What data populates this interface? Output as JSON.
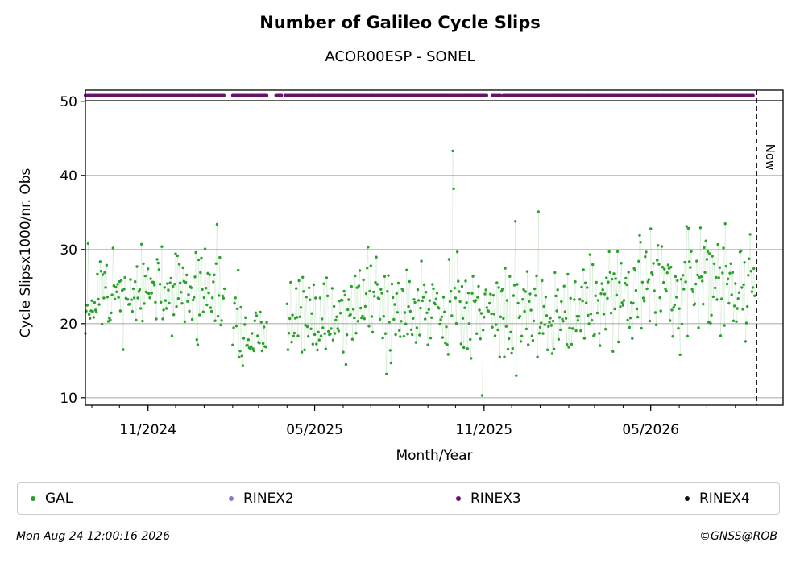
{
  "chart_data": {
    "type": "scatter",
    "title": "Number of Galileo Cycle Slips",
    "subtitle": "ACOR00ESP - SONEL",
    "xlabel": "Month/Year",
    "ylabel": "Cycle Slipsx1000/nr. Obs",
    "x_start": "2024-08-25",
    "x_end": "2026-08-24",
    "now": "2026-08-24",
    "now_label": "Now",
    "ylim": [
      9,
      51.5
    ],
    "yticks": [
      10,
      20,
      30,
      40,
      50
    ],
    "xticks": [
      {
        "date": "2024-11-01",
        "label": "11/2024"
      },
      {
        "date": "2025-05-01",
        "label": "05/2025"
      },
      {
        "date": "2025-11-01",
        "label": "11/2025"
      },
      {
        "date": "2026-05-01",
        "label": "05/2026"
      }
    ],
    "grid": "horizontal",
    "legend_location": "bottom",
    "series": [
      {
        "name": "GAL",
        "color": "#2ca02c",
        "segments": [
          {
            "start": "2024-08-25",
            "end": "2025-01-23",
            "min": 16.5,
            "max": 30.8
          },
          {
            "start": "2025-02-01",
            "end": "2025-03-10",
            "min": 14.2,
            "max": 27.0
          },
          {
            "start": "2025-04-01",
            "end": "2025-10-29",
            "min": 13.2,
            "max": 30.5
          },
          {
            "start": "2025-10-30",
            "end": "2026-08-22",
            "min": 15.5,
            "max": 33.5
          }
        ],
        "highlights": [
          {
            "date": "2024-08-28",
            "value": 30.8
          },
          {
            "date": "2025-01-15",
            "value": 33.4
          },
          {
            "date": "2025-02-07",
            "value": 27.2
          },
          {
            "date": "2025-02-12",
            "value": 14.3
          },
          {
            "date": "2025-07-18",
            "value": 13.2
          },
          {
            "date": "2025-09-28",
            "value": 43.3
          },
          {
            "date": "2025-09-29",
            "value": 38.2
          },
          {
            "date": "2025-10-30",
            "value": 10.3
          },
          {
            "date": "2025-12-05",
            "value": 33.8
          },
          {
            "date": "2025-12-06",
            "value": 13.0
          },
          {
            "date": "2025-12-30",
            "value": 35.1
          },
          {
            "date": "2026-05-01",
            "value": 32.8
          },
          {
            "date": "2026-06-02",
            "value": 15.8
          },
          {
            "date": "2026-08-12",
            "value": 17.6
          }
        ]
      },
      {
        "name": "RINEX2",
        "color": "#8080c0",
        "segments": []
      },
      {
        "name": "RINEX3",
        "color": "#6a0f6a",
        "value": 50.8,
        "segments": [
          {
            "start": "2024-08-25",
            "end": "2025-01-23"
          },
          {
            "start": "2025-02-01",
            "end": "2025-03-10"
          },
          {
            "start": "2025-03-20",
            "end": "2025-03-26"
          },
          {
            "start": "2025-03-30",
            "end": "2025-11-05"
          },
          {
            "start": "2025-11-10",
            "end": "2025-11-20"
          },
          {
            "start": "2025-11-22",
            "end": "2026-08-22"
          }
        ]
      },
      {
        "name": "RINEX4",
        "color": "#1a0a1f",
        "segments": []
      }
    ]
  },
  "legend": [
    {
      "label": "GAL",
      "color": "#2ca02c"
    },
    {
      "label": "RINEX2",
      "color": "#8080c0"
    },
    {
      "label": "RINEX3",
      "color": "#6a0f6a"
    },
    {
      "label": "RINEX4",
      "color": "#1a0a1f"
    }
  ],
  "footer": {
    "timestamp": "Mon Aug 24 12:00:16 2026",
    "credit": "©GNSS@ROB"
  }
}
